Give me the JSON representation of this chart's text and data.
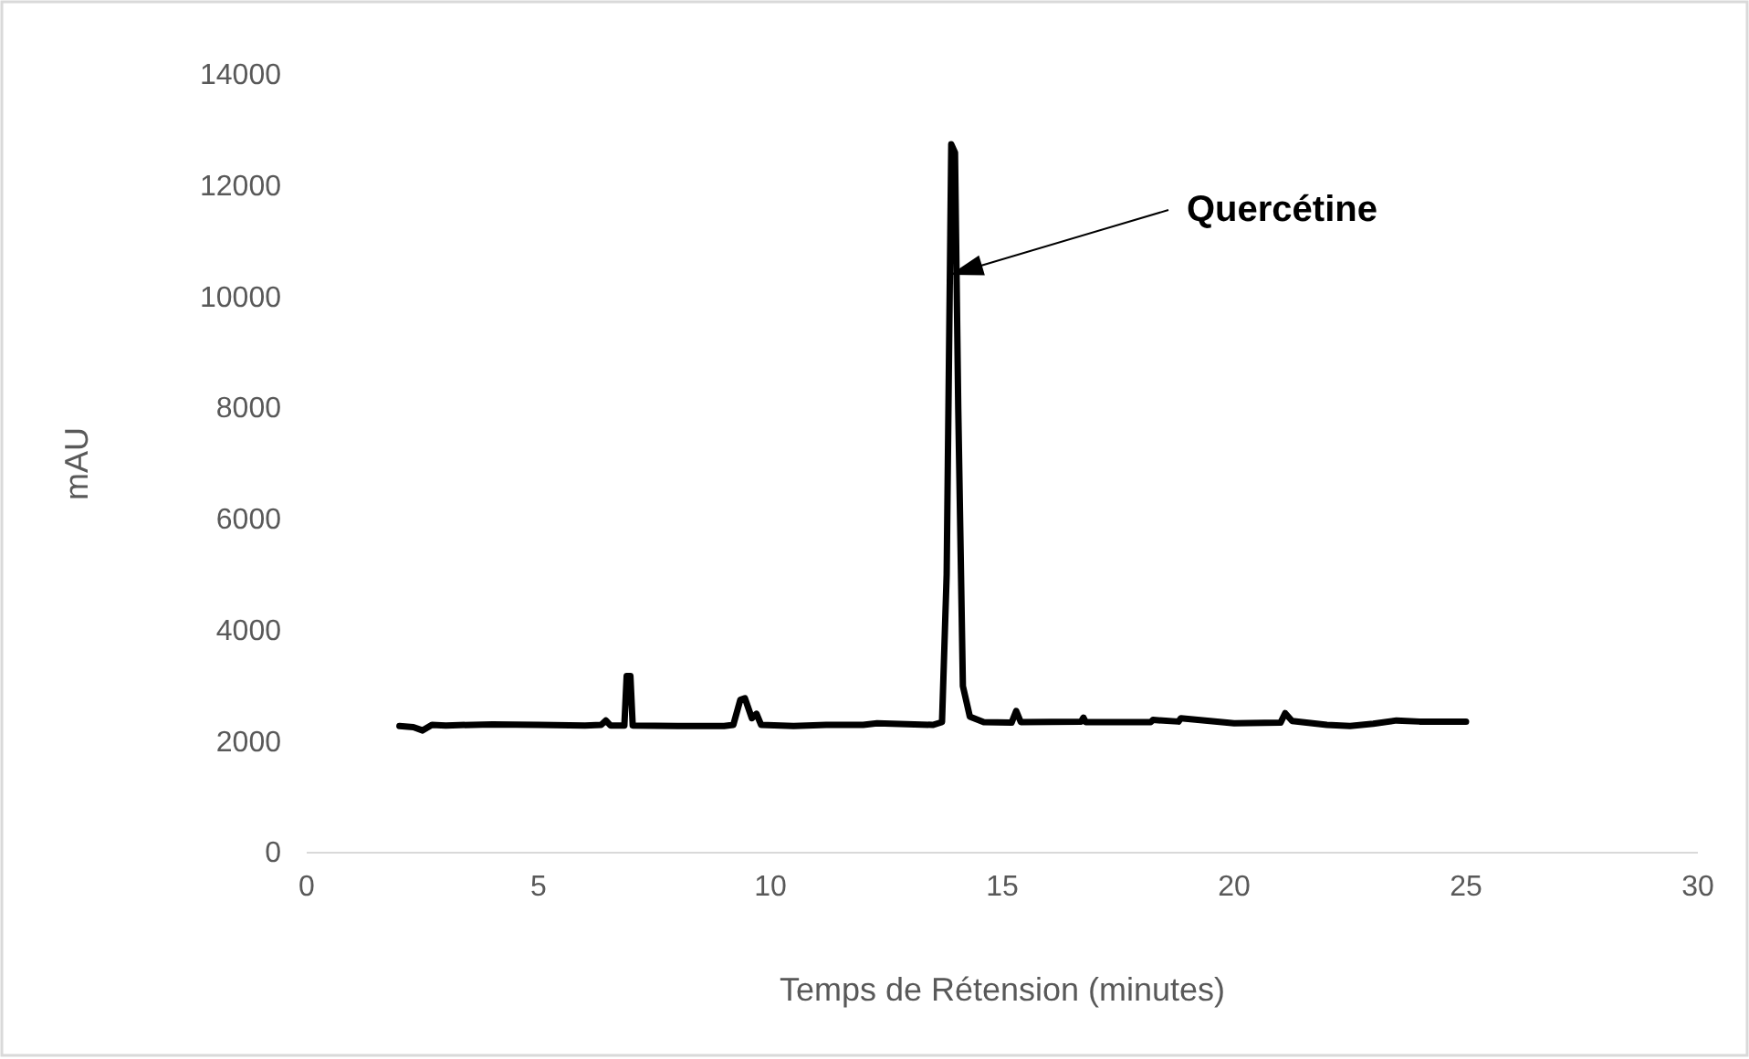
{
  "chart_data": {
    "type": "line",
    "xlabel": "Temps de Rétension (minutes)",
    "ylabel": "mAU",
    "xlim": [
      0,
      30
    ],
    "xticks": [
      0,
      5,
      10,
      15,
      20,
      25,
      30
    ],
    "ylim": [
      0,
      14000
    ],
    "yticks": [
      0,
      2000,
      4000,
      6000,
      8000,
      10000,
      12000,
      14000
    ],
    "grid": false,
    "marker": "none",
    "line_style": "solid",
    "annotations": [
      "Quercétine"
    ],
    "series": [
      {
        "color": "#000000",
        "x": [
          2.0,
          2.3,
          2.5,
          2.7,
          3.0,
          4.0,
          5.0,
          6.0,
          6.35,
          6.45,
          6.55,
          6.85,
          6.9,
          6.98,
          7.03,
          8.0,
          9.0,
          9.2,
          9.35,
          9.45,
          9.6,
          9.7,
          9.8,
          10.5,
          11.2,
          12.0,
          12.3,
          13.5,
          13.7,
          13.8,
          13.9,
          13.98,
          14.05,
          14.15,
          14.3,
          14.6,
          15.2,
          15.3,
          15.4,
          16.7,
          16.75,
          16.8,
          18.2,
          18.25,
          18.8,
          18.85,
          20.0,
          21.0,
          21.1,
          21.25,
          22.0,
          22.5,
          23.0,
          23.5,
          24.0,
          25.0
        ],
        "values": [
          2280,
          2260,
          2200,
          2300,
          2290,
          2310,
          2300,
          2290,
          2300,
          2380,
          2290,
          2290,
          3180,
          3180,
          2290,
          2280,
          2280,
          2300,
          2750,
          2780,
          2420,
          2500,
          2300,
          2280,
          2300,
          2300,
          2330,
          2300,
          2350,
          5000,
          12750,
          12600,
          8000,
          3000,
          2450,
          2350,
          2340,
          2550,
          2350,
          2360,
          2430,
          2350,
          2350,
          2390,
          2360,
          2420,
          2330,
          2340,
          2510,
          2370,
          2300,
          2280,
          2320,
          2380,
          2360,
          2360
        ]
      }
    ]
  }
}
